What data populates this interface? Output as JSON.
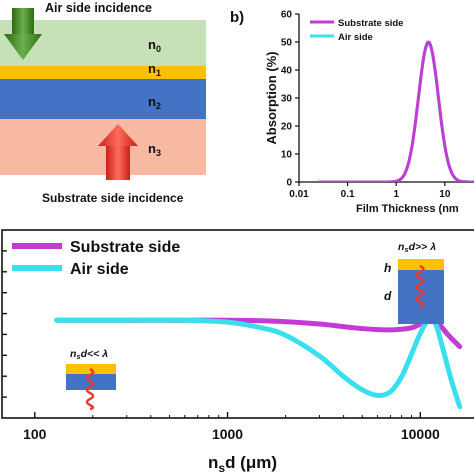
{
  "panel_a": {
    "top_label": "Air side incidence",
    "bottom_label": "Substrate side incidence",
    "layers": [
      {
        "symbol": "n",
        "sub": "0"
      },
      {
        "symbol": "n",
        "sub": "1"
      },
      {
        "symbol": "n",
        "sub": "2"
      },
      {
        "symbol": "n",
        "sub": "3"
      }
    ],
    "colors": {
      "n0": "#c6e0b8",
      "n1": "#ffc000",
      "n2": "#4472c4",
      "n3": "#f8b9a2",
      "air_arrow": "#3c7a1e",
      "substrate_arrow": "#e83a2e"
    }
  },
  "panel_b": {
    "panel_label": "b)",
    "ylabel": "Absorption (%)",
    "xlabel": "Film Thickness (nm",
    "yticks": [
      "0",
      "10",
      "20",
      "30",
      "40",
      "50",
      "60"
    ],
    "xticks": [
      "0.01",
      "0.1",
      "1",
      "10"
    ]
  },
  "panel_c": {
    "xlabel_main": "n",
    "xlabel_sub": "s",
    "xlabel_rest": "d (μm)",
    "xticks": [
      "100",
      "1000",
      "10000"
    ],
    "inset_thin": {
      "label": "n",
      "sub": "s",
      "rest": "d<< λ"
    },
    "inset_thick": {
      "label": "n",
      "sub": "s",
      "rest": "d>> λ",
      "h_label": "h",
      "d_label": "d"
    }
  },
  "chart_data": [
    {
      "type": "line",
      "xlabel": "Film Thickness (nm",
      "ylabel": "Absorption (%)",
      "x_scale": "log",
      "xlim": [
        0.01,
        30
      ],
      "ylim": [
        0,
        60
      ],
      "legend": "top-left",
      "series": [
        {
          "name": "Substrate side",
          "color": "#c23bd4",
          "peak_x": 4.6,
          "peak_y": 50,
          "width_decades": 0.29,
          "x": [
            0.03,
            0.3,
            1,
            2,
            3,
            4,
            4.6,
            5.5,
            7,
            10,
            15,
            25
          ],
          "y": [
            0.2,
            0.8,
            3,
            14,
            33,
            47,
            50,
            46,
            31,
            13,
            4,
            0.5
          ]
        },
        {
          "name": "Air side",
          "color": "#38e0ee",
          "peak_x": 4.6,
          "peak_y": 49.5,
          "width_decades": 0.29,
          "x": [
            0.03,
            0.3,
            1,
            2,
            3,
            4,
            4.6,
            5.5,
            7,
            10,
            15,
            25
          ],
          "y": [
            0.2,
            0.8,
            3,
            14,
            33,
            46.5,
            49.5,
            45.5,
            31,
            13,
            4,
            0.5
          ]
        }
      ]
    },
    {
      "type": "line",
      "xlabel": "nsd (μm)",
      "x_scale": "log",
      "xlim": [
        70,
        20000
      ],
      "ylim": [
        0,
        1
      ],
      "legend": "top-left",
      "series": [
        {
          "name": "Substrate side",
          "color": "#c23bd4",
          "x": [
            130,
            300,
            600,
            1000,
            1800,
            3000,
            4500,
            6000,
            7500,
            9000,
            10500,
            11500,
            12500,
            14000,
            16000
          ],
          "y": [
            0.52,
            0.52,
            0.52,
            0.52,
            0.515,
            0.5,
            0.48,
            0.47,
            0.47,
            0.48,
            0.51,
            0.53,
            0.5,
            0.44,
            0.38
          ]
        },
        {
          "name": "Air side",
          "color": "#38e0ee",
          "x": [
            130,
            300,
            600,
            1000,
            1500,
            2000,
            3000,
            4000,
            5000,
            6000,
            7000,
            8000,
            9000,
            10000,
            11000,
            12000,
            13000,
            14500,
            16000
          ],
          "y": [
            0.52,
            0.52,
            0.52,
            0.51,
            0.48,
            0.44,
            0.33,
            0.22,
            0.15,
            0.12,
            0.14,
            0.22,
            0.34,
            0.45,
            0.52,
            0.5,
            0.38,
            0.2,
            0.06
          ]
        }
      ]
    }
  ]
}
